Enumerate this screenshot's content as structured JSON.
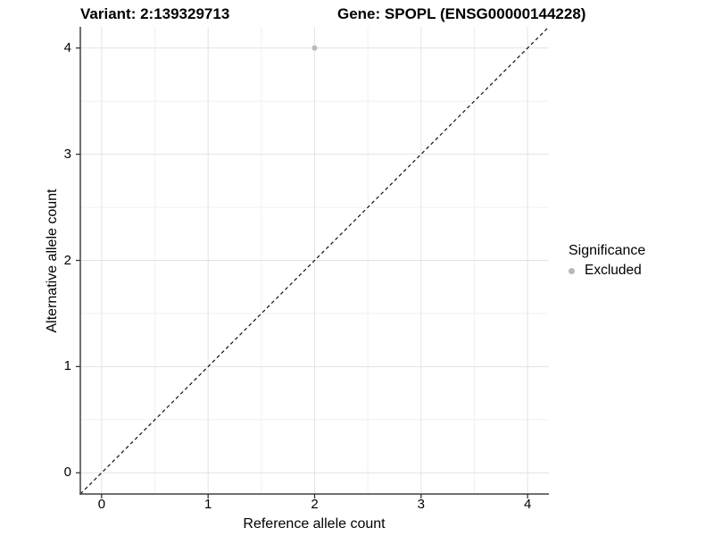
{
  "chart_data": {
    "type": "scatter",
    "title_left": "Variant: 2:139329713",
    "title_right": "Gene: SPOPL (ENSG00000144228)",
    "xlabel": "Reference allele count",
    "ylabel": "Alternative allele count",
    "xlim": [
      -0.2,
      4.2
    ],
    "ylim": [
      -0.2,
      4.2
    ],
    "x_ticks": [
      0,
      1,
      2,
      3,
      4
    ],
    "y_ticks": [
      0,
      1,
      2,
      3,
      4
    ],
    "x_minor_ticks": [
      0.5,
      1.5,
      2.5,
      3.5
    ],
    "y_minor_ticks": [
      0.5,
      1.5,
      2.5,
      3.5
    ],
    "grid": true,
    "series": [
      {
        "name": "Excluded",
        "marker": "circle",
        "color": "#b9b9b9",
        "points": [
          {
            "x": 2,
            "y": 4
          }
        ]
      }
    ],
    "reference_line": {
      "equation": "y = x",
      "style": "dashed",
      "from": -0.2,
      "to": 4.2
    },
    "legend": {
      "title": "Significance",
      "position": "right",
      "items": [
        {
          "label": "Excluded",
          "color": "#b9b9b9",
          "marker": "circle"
        }
      ]
    },
    "colors": {
      "grid_major": "#e3e3e3",
      "grid_minor": "#f0f0f0",
      "axis_line": "#404040",
      "tick_mark": "#333333",
      "reference_line": "#111111",
      "text": "#000000",
      "background": "#ffffff"
    }
  }
}
